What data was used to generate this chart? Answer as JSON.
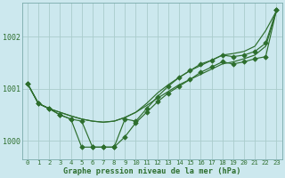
{
  "title": "Graphe pression niveau de la mer (hPa)",
  "bg_color": "#cce8ee",
  "grid_color": "#aacccc",
  "line_color": "#2d6e2d",
  "x_ticks": [
    0,
    1,
    2,
    3,
    4,
    5,
    6,
    7,
    8,
    9,
    10,
    11,
    12,
    13,
    14,
    15,
    16,
    17,
    18,
    19,
    20,
    21,
    22,
    23
  ],
  "ylim": [
    999.65,
    1002.65
  ],
  "yticks": [
    1000,
    1001,
    1002
  ],
  "smooth_lines": [
    [
      1001.1,
      1000.72,
      1000.62,
      1000.55,
      1000.48,
      1000.42,
      1000.38,
      1000.36,
      1000.38,
      1000.45,
      1000.55,
      1000.68,
      1000.82,
      1000.95,
      1001.08,
      1001.18,
      1001.28,
      1001.38,
      1001.48,
      1001.52,
      1001.58,
      1001.65,
      1001.82,
      1002.5
    ],
    [
      1001.1,
      1000.72,
      1000.62,
      1000.55,
      1000.48,
      1000.42,
      1000.38,
      1000.36,
      1000.38,
      1000.45,
      1000.55,
      1000.72,
      1000.92,
      1001.08,
      1001.22,
      1001.35,
      1001.45,
      1001.55,
      1001.65,
      1001.68,
      1001.72,
      1001.82,
      1002.12,
      1002.5
    ]
  ],
  "marked_lines": [
    {
      "y": [
        1001.1,
        1000.72,
        1000.62,
        1000.5,
        1000.42,
        999.88,
        999.88,
        999.88,
        999.88,
        1000.08,
        1000.35,
        1000.55,
        1000.75,
        1000.92,
        1001.05,
        1001.18,
        1001.32,
        1001.42,
        1001.52,
        1001.48,
        1001.52,
        1001.58,
        1001.62,
        1002.52
      ],
      "marker": "D",
      "markersize": 2.8
    },
    {
      "y": [
        1001.1,
        1000.72,
        1000.62,
        1000.5,
        1000.42,
        1000.38,
        999.88,
        999.88,
        999.88,
        1000.42,
        1000.38,
        1000.62,
        1000.85,
        1001.05,
        1001.22,
        1001.35,
        1001.48,
        1001.55,
        1001.65,
        1001.62,
        1001.65,
        1001.72,
        1001.88,
        1002.52
      ],
      "marker": "D",
      "markersize": 2.8
    }
  ],
  "figsize": [
    3.2,
    2.0
  ],
  "dpi": 100,
  "lw": 0.85
}
